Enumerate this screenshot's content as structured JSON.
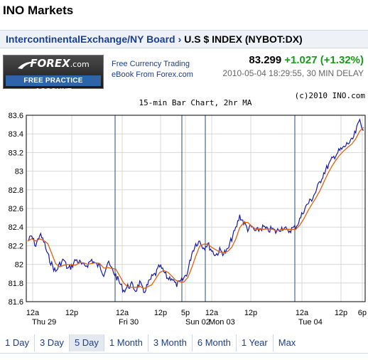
{
  "site": {
    "title": "INO Markets"
  },
  "breadcrumb": {
    "parent": "IntercontinentalExchange/NY Board",
    "separator": "›",
    "current": "U.S $ INDEX (NYBOT:DX)"
  },
  "ad": {
    "logo": "FOREX",
    "logo_suffix": ".com",
    "strip": "FREE PRACTICE ACCOUNT",
    "promo_line1": "Free Currency Trading",
    "promo_line2": "eBook From Forex.com"
  },
  "quote": {
    "price": "83.299",
    "change": "+1.027 (+1.32%)",
    "timestamp": "2010-05-04 18:29:55, 30 MIN DELAY"
  },
  "colors": {
    "price_bars": "#1a1aa0",
    "moving_average": "#e06010",
    "session_lines": "#2a4a7a",
    "change_up": "#1a9a1a",
    "link": "#1a3f8f"
  },
  "chart_data": {
    "type": "line",
    "title": "15-min Bar Chart, 2hr MA",
    "copyright": "(c)2010 INO.com",
    "ylim": [
      81.6,
      83.6
    ],
    "yticks": [
      "83.6",
      "83.4",
      "83.2",
      "83",
      "82.8",
      "82.6",
      "82.4",
      "82.2",
      "82",
      "81.8",
      "81.6"
    ],
    "grid": true,
    "x_time_labels": [
      "12a",
      "12p",
      "12a",
      "12p",
      "5p",
      "12a",
      "12p",
      "12a",
      "12p",
      "6p"
    ],
    "x_day_labels": [
      "Thu 29",
      "Fri 30",
      "Sun 02",
      "Mon 03",
      "Tue 04"
    ],
    "series": [
      {
        "name": "",
        "values": [
          82.25,
          82.3,
          82.2,
          82.32,
          82.25,
          82.1,
          82.0,
          81.92,
          82.0,
          82.05,
          81.95,
          81.98,
          82.05,
          82.02,
          81.98,
          82.0,
          82.05,
          82.0,
          81.98,
          81.9,
          82.02,
          81.95,
          81.88,
          81.8,
          81.72,
          81.76,
          81.78,
          81.72,
          81.8,
          81.7,
          81.78,
          81.86,
          81.9,
          81.98,
          81.92,
          81.85,
          81.86,
          81.78,
          81.8,
          81.85,
          81.92,
          82.12,
          82.22,
          82.25,
          82.18,
          82.22,
          82.15,
          82.1,
          82.15,
          82.12,
          82.15,
          82.28,
          82.38,
          82.52,
          82.45,
          82.38,
          82.4,
          82.35,
          82.38,
          82.4,
          82.36,
          82.38,
          82.35,
          82.38,
          82.4,
          82.35,
          82.38,
          82.4,
          82.48,
          82.58,
          82.65,
          82.7,
          82.78,
          82.88,
          82.98,
          83.05,
          83.12,
          83.18,
          83.22,
          83.25,
          83.3,
          83.32,
          83.42,
          83.55,
          83.44
        ]
      }
    ]
  },
  "range_tabs": [
    {
      "label": "1 Day",
      "active": false
    },
    {
      "label": "3 Day",
      "active": false
    },
    {
      "label": "5 Day",
      "active": true
    },
    {
      "label": "1 Month",
      "active": false
    },
    {
      "label": "3 Month",
      "active": false
    },
    {
      "label": "6 Month",
      "active": false
    },
    {
      "label": "1 Year",
      "active": false
    },
    {
      "label": "Max",
      "active": false
    }
  ]
}
